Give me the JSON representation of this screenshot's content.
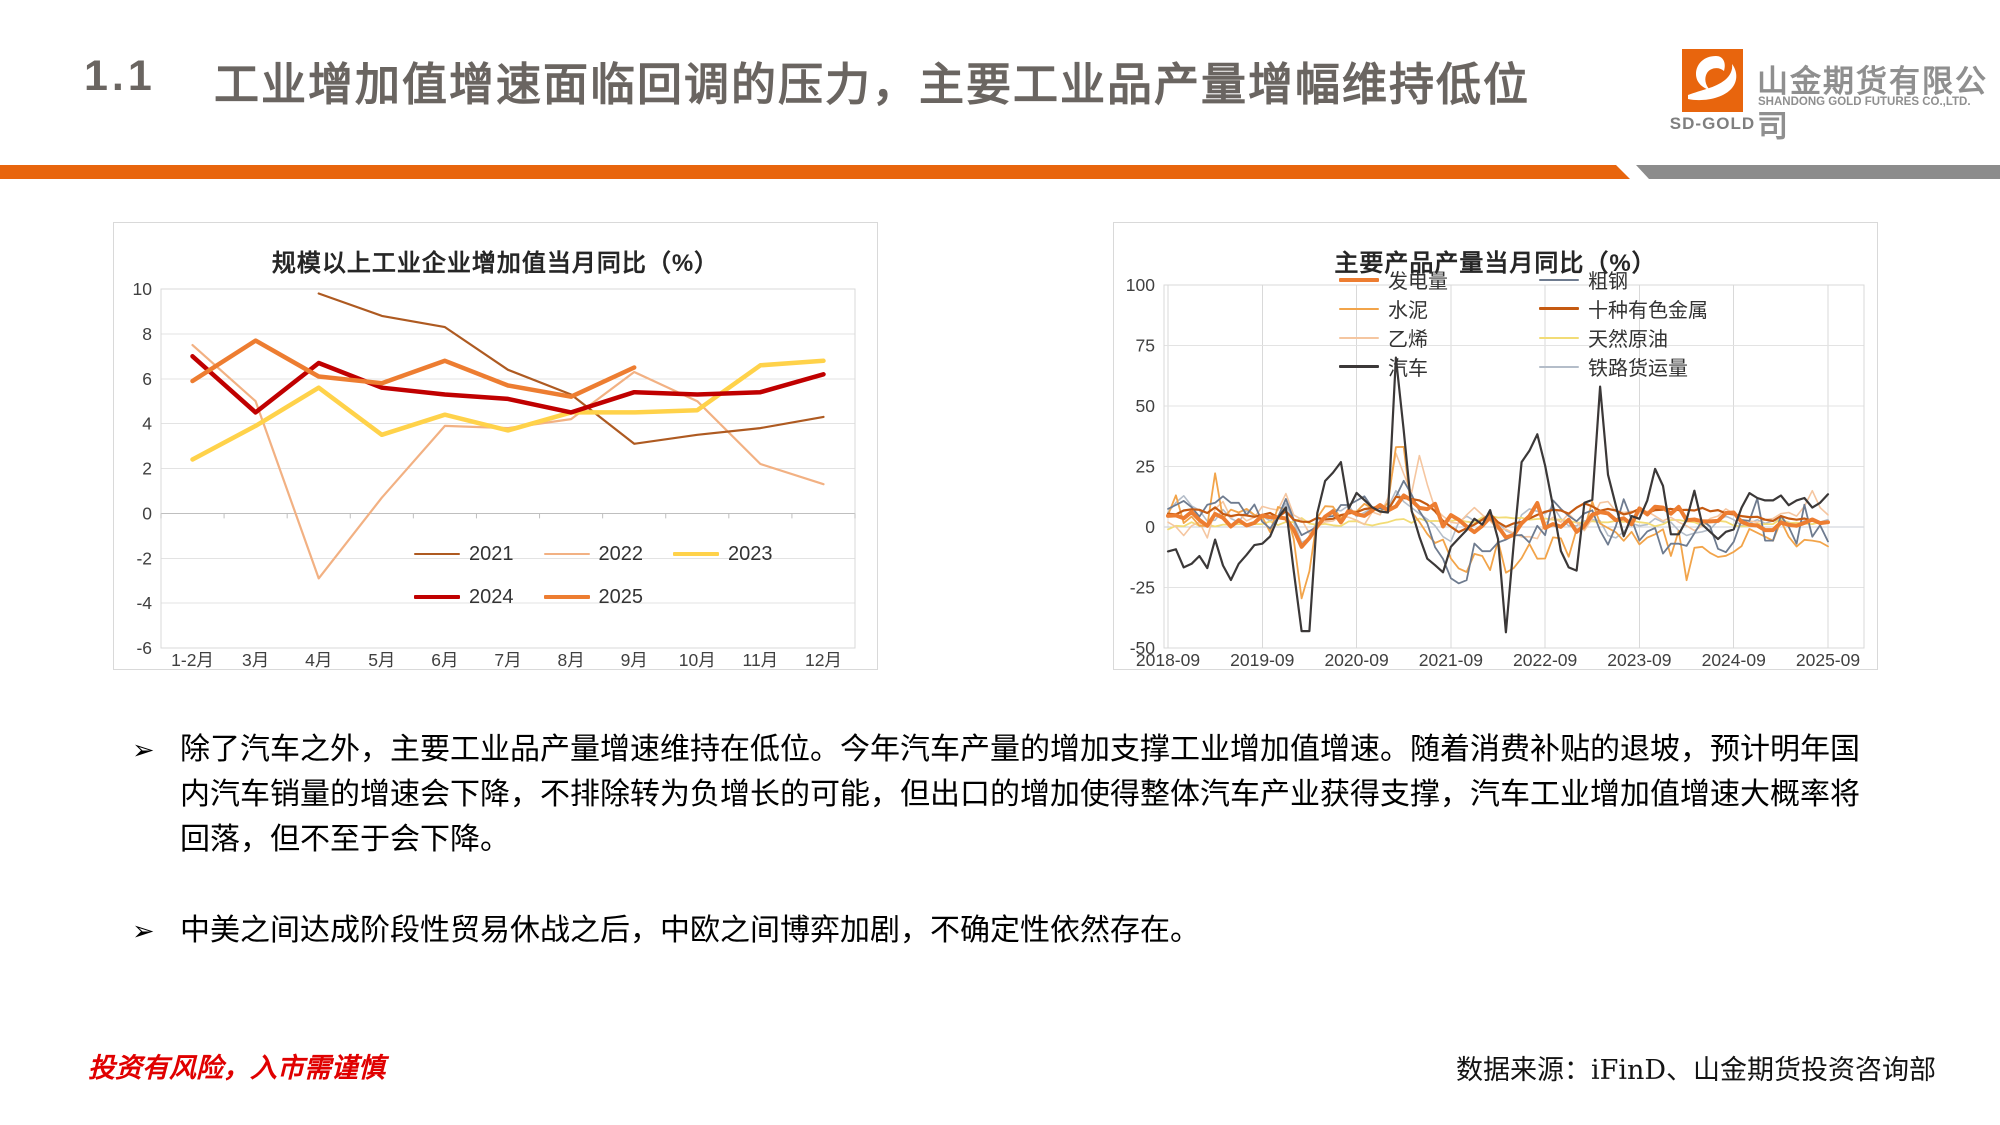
{
  "header": {
    "section_number": "1.1",
    "title": "工业增加值增速面临回调的压力，主要工业品产量增幅维持低位",
    "accent_color": "#E8650D",
    "secondary_color": "#8C8C8C",
    "logo": {
      "icon": "sd-gold-wave-logo",
      "logo_text": "SD-GOLD",
      "company_cn": "山金期货有限公司",
      "company_en": "SHANDONG GOLD FUTURES CO.,LTD."
    }
  },
  "bullets": {
    "marker": "➢",
    "items": [
      "除了汽车之外，主要工业品产量增速维持在低位。今年汽车产量的增加支撑工业增加值增速。随着消费补贴的退坡，预计明年国内汽车销量的增速会下降，不排除转为负增长的可能，但出口的增加使得整体汽车产业获得支撑，汽车工业增加值增速大概率将回落，但不至于会下降。",
      "中美之间达成阶段性贸易休战之后，中欧之间博弈加剧，不确定性依然存在。"
    ]
  },
  "footer": {
    "disclaimer": "投资有风险，入市需谨慎",
    "source": "数据来源：iFinD、山金期货投资咨询部"
  },
  "chart_data": [
    {
      "type": "line",
      "title": "规模以上工业企业增加值当月同比（%）",
      "ylim": [
        -6,
        10
      ],
      "ytick_step": 2,
      "grid": true,
      "legend_position": "inside-bottom",
      "categories": [
        "1-2月",
        "3月",
        "4月",
        "5月",
        "6月",
        "7月",
        "8月",
        "9月",
        "10月",
        "11月",
        "12月"
      ],
      "series": [
        {
          "name": "2022",
          "color": "#F2B183",
          "width": 2.2,
          "values": [
            7.5,
            5.0,
            -2.9,
            0.7,
            3.9,
            3.8,
            4.2,
            6.3,
            5.0,
            2.2,
            1.3
          ]
        },
        {
          "name": "2021",
          "color": "#AE5A21",
          "width": 2.2,
          "values": [
            null,
            null,
            9.8,
            8.8,
            8.3,
            6.4,
            5.3,
            3.1,
            3.5,
            3.8,
            4.3
          ]
        },
        {
          "name": "2023",
          "color": "#FFD24A",
          "width": 4.5,
          "values": [
            2.4,
            3.9,
            5.6,
            3.5,
            4.4,
            3.7,
            4.5,
            4.5,
            4.6,
            6.6,
            6.8
          ]
        },
        {
          "name": "2024",
          "color": "#C00000",
          "width": 4.5,
          "values": [
            7.0,
            4.5,
            6.7,
            5.6,
            5.3,
            5.1,
            4.5,
            5.4,
            5.3,
            5.4,
            6.2
          ]
        },
        {
          "name": "2025",
          "color": "#ED7D31",
          "width": 4.5,
          "values": [
            5.9,
            7.7,
            6.1,
            5.8,
            6.8,
            5.7,
            5.2,
            6.5,
            null,
            null,
            null
          ]
        }
      ],
      "legend_rows": [
        [
          "2021",
          "2022",
          "2023"
        ],
        [
          "2024",
          "2025"
        ]
      ]
    },
    {
      "type": "line",
      "title": "主要产品产量当月同比（%）",
      "ylim": [
        -50,
        100
      ],
      "ytick_step": 25,
      "grid": true,
      "legend_position": "inside-top",
      "x_start": "2018-09",
      "x_end": "2025-09",
      "x_ticks": [
        "2018-09",
        "2019-09",
        "2020-09",
        "2021-09",
        "2022-09",
        "2023-09",
        "2024-09",
        "2025-09"
      ],
      "x_tick_indices": [
        0,
        12,
        24,
        36,
        48,
        60,
        72,
        84
      ],
      "series": [
        {
          "name": "铁路货运量",
          "color": "#B4BDC9",
          "width": 1.6,
          "values": [
            6.0,
            10.1,
            12.9,
            8.7,
            6.9,
            2.4,
            2.8,
            7.2,
            3.5,
            2.0,
            6.9,
            4.7,
            4.5,
            2.5,
            4.5,
            9.7,
            2.0,
            -6.5,
            -4.5,
            2.9,
            3.9,
            7.3,
            6.7,
            8.9,
            4.3,
            6.0,
            7.8,
            8.9,
            8.0,
            15.0,
            10.5,
            8.0,
            5.5,
            3.2,
            0.5,
            -4.0,
            -6.0,
            2.0,
            4.5,
            2.5,
            3.5,
            5.0,
            2.0,
            -1.5,
            -3.0,
            5.0,
            7.5,
            6.5,
            5.5,
            8.5,
            3.5,
            0.5,
            0.5,
            2.5,
            3.0,
            2.5,
            -3.5,
            -4.5,
            -2.0,
            1.5,
            0.5,
            1.0,
            3.5,
            2.0,
            2.0,
            -1.5,
            -3.5,
            -2.5,
            -2.0,
            -1.0,
            2.5,
            4.5,
            3.0,
            0.5,
            1.5,
            3.0,
            1.5,
            2.5,
            3.0,
            2.0,
            1.0,
            2.5,
            3.5,
            2.0,
            3.0
          ]
        },
        {
          "name": "天然原油",
          "color": "#F2DC76",
          "width": 1.8,
          "values": [
            -1.0,
            0.5,
            0.3,
            2.0,
            0.5,
            1.0,
            0.2,
            1.0,
            1.0,
            1.2,
            1.2,
            1.2,
            1.2,
            2.3,
            0.8,
            2.1,
            2.0,
            3.7,
            1.4,
            0.9,
            1.3,
            0.7,
            0.4,
            2.3,
            2.4,
            1.2,
            0.6,
            1.4,
            2.0,
            3.0,
            3.3,
            1.7,
            3.5,
            2.4,
            2.5,
            2.3,
            2.5,
            3.0,
            2.2,
            1.8,
            4.0,
            4.6,
            3.9,
            4.0,
            3.6,
            3.8,
            3.0,
            3.3,
            3.5,
            3.0,
            3.1,
            2.5,
            1.8,
            1.8,
            2.4,
            2.0,
            1.9,
            2.5,
            2.1,
            2.7,
            2.0,
            1.6,
            0.3,
            1.1,
            2.9,
            2.9,
            2.3,
            2.0,
            0.6,
            2.4,
            2.5,
            2.2,
            0.6,
            0.2,
            0.5,
            1.3,
            1.2,
            1.2,
            3.5,
            1.6,
            1.8,
            1.4,
            1.2,
            2.0,
            1.8
          ]
        },
        {
          "name": "乙烯",
          "color": "#F5C6A0",
          "width": 1.6,
          "values": [
            2.0,
            0.1,
            -3.5,
            0.5,
            2.0,
            -4.5,
            7.5,
            10.5,
            3.8,
            5.5,
            2.5,
            4.0,
            8.5,
            7.6,
            7.0,
            13.8,
            5.0,
            3.1,
            -2.6,
            0.7,
            2.1,
            2.5,
            4.7,
            4.0,
            2.8,
            1.0,
            6.2,
            5.0,
            12.0,
            30.5,
            22.0,
            14.0,
            29.5,
            17.5,
            7.5,
            4.5,
            2.0,
            1.5,
            5.0,
            8.0,
            5.0,
            2.5,
            -1.0,
            -0.9,
            -2.5,
            -4.1,
            -4.0,
            -4.8,
            1.5,
            4.0,
            2.0,
            5.5,
            2.0,
            -1.5,
            3.5,
            10.0,
            10.5,
            6.5,
            6.0,
            6.5,
            6.0,
            6.5,
            4.5,
            2.5,
            4.0,
            2.0,
            0.5,
            -1.5,
            0.5,
            3.5,
            4.5,
            7.5,
            5.5,
            3.0,
            2.5,
            2.0,
            3.0,
            3.5,
            5.5,
            6.0,
            4.5,
            8.5,
            15.0,
            8.0,
            5.0
          ]
        },
        {
          "name": "水泥",
          "color": "#F2A44A",
          "width": 1.8,
          "values": [
            5.0,
            13.1,
            1.6,
            4.3,
            0.5,
            0.5,
            22.2,
            3.4,
            7.2,
            6.0,
            7.5,
            5.0,
            4.1,
            -2.1,
            8.3,
            6.9,
            -5.0,
            -29.5,
            -18.3,
            3.8,
            8.6,
            8.4,
            3.6,
            6.6,
            6.4,
            9.6,
            7.7,
            6.3,
            10.0,
            33.0,
            33.1,
            6.3,
            2.1,
            -2.9,
            -6.6,
            -5.2,
            -13.0,
            -17.1,
            -18.6,
            -11.1,
            -12.0,
            -17.8,
            -5.6,
            -18.9,
            -17.0,
            -12.9,
            -7.0,
            -13.1,
            -13.0,
            -4.3,
            -4.7,
            -12.3,
            -1.0,
            -0.6,
            10.4,
            1.4,
            -0.4,
            -2.2,
            -5.7,
            -2.0,
            -7.2,
            -4.4,
            -3.0,
            -0.9,
            -12.0,
            -1.6,
            -22.0,
            -8.6,
            -8.2,
            -10.7,
            -12.4,
            -11.9,
            -10.3,
            -7.9,
            -0.8,
            -2.4,
            -4.0,
            -5.7,
            2.5,
            -4.0,
            -8.1,
            -5.3,
            -5.6,
            -6.2,
            -8.0
          ]
        },
        {
          "name": "粗钢",
          "color": "#6E7B8F",
          "width": 1.8,
          "values": [
            7.5,
            9.1,
            10.8,
            8.2,
            4.3,
            9.2,
            10.0,
            12.7,
            10.0,
            10.0,
            5.0,
            9.3,
            2.2,
            -0.6,
            4.1,
            11.6,
            3.1,
            -3.4,
            -1.7,
            0.2,
            4.2,
            4.5,
            9.1,
            9.1,
            10.9,
            12.7,
            8.0,
            7.7,
            6.8,
            12.5,
            19.1,
            13.4,
            6.6,
            1.5,
            -8.4,
            -13.2,
            -21.2,
            -23.3,
            -22.0,
            -6.8,
            -10.0,
            -10.0,
            -6.4,
            -5.2,
            -3.5,
            -3.3,
            -6.4,
            0.5,
            -3.4,
            11.0,
            7.5,
            4.6,
            2.4,
            5.6,
            6.9,
            -1.5,
            -7.3,
            0.4,
            11.5,
            3.2,
            -5.6,
            -1.8,
            -0.4,
            -11.0,
            -6.9,
            -6.9,
            -7.8,
            -2.6,
            2.7,
            0.2,
            -9.0,
            -10.4,
            -6.1,
            2.9,
            2.5,
            11.8,
            -5.6,
            -5.6,
            4.6,
            0.1,
            -6.9,
            9.2,
            -4.0,
            0.7,
            -6.0
          ]
        },
        {
          "name": "十种有色金属",
          "color": "#C55A11",
          "width": 2.2,
          "values": [
            5.5,
            5.2,
            6.8,
            7.3,
            7.1,
            5.8,
            8.1,
            5.4,
            4.5,
            5.1,
            4.8,
            4.2,
            5.0,
            5.8,
            4.0,
            6.5,
            3.0,
            2.2,
            2.1,
            3.8,
            3.1,
            3.4,
            4.9,
            5.6,
            6.1,
            7.4,
            7.9,
            8.6,
            7.0,
            12.5,
            12.0,
            11.6,
            11.0,
            9.3,
            6.5,
            2.5,
            0.1,
            -2.1,
            -0.5,
            1.0,
            3.0,
            5.5,
            2.0,
            0.1,
            1.5,
            2.1,
            3.5,
            5.0,
            6.3,
            7.1,
            6.8,
            5.5,
            8.0,
            9.8,
            8.5,
            6.7,
            7.5,
            6.8,
            5.2,
            6.0,
            7.5,
            5.8,
            7.0,
            7.2,
            7.5,
            7.0,
            7.1,
            6.8,
            7.9,
            6.5,
            7.0,
            5.6,
            5.2,
            4.5,
            4.1,
            4.2,
            3.0,
            2.5,
            4.5,
            3.5,
            3.0,
            3.5,
            2.5,
            2.0,
            2.2
          ]
        },
        {
          "name": "发电量",
          "color": "#ED7D31",
          "width": 4.0,
          "values": [
            4.6,
            4.8,
            3.6,
            6.2,
            2.9,
            0.5,
            5.4,
            3.8,
            0.2,
            2.8,
            0.6,
            1.7,
            4.7,
            4.0,
            4.0,
            3.5,
            -1.0,
            -8.2,
            -4.6,
            0.3,
            4.3,
            6.5,
            1.9,
            6.8,
            5.3,
            4.6,
            6.8,
            9.1,
            6.8,
            8.5,
            13.0,
            11.0,
            7.9,
            7.4,
            9.6,
            0.2,
            4.9,
            3.0,
            0.2,
            -2.1,
            0.5,
            4.0,
            0.2,
            -4.3,
            -3.3,
            1.5,
            4.5,
            9.9,
            -0.4,
            1.2,
            0.1,
            3.0,
            -2.0,
            0.5,
            5.1,
            6.1,
            5.6,
            2.8,
            3.6,
            1.1,
            7.7,
            5.2,
            8.4,
            8.0,
            5.5,
            8.3,
            2.8,
            3.1,
            2.3,
            2.3,
            2.5,
            5.8,
            6.0,
            2.1,
            0.9,
            0.6,
            -1.3,
            -1.3,
            1.8,
            0.9,
            0.5,
            1.7,
            3.1,
            1.6,
            2.0
          ]
        },
        {
          "name": "汽车",
          "color": "#3B3838",
          "width": 2.2,
          "values": [
            -10.1,
            -9.2,
            -16.7,
            -15.2,
            -12.0,
            -17.0,
            -5.2,
            -15.9,
            -21.9,
            -15.2,
            -11.5,
            -7.5,
            -6.9,
            -3.9,
            3.8,
            8.1,
            -18.0,
            -43.0,
            -43.0,
            5.8,
            19.0,
            22.5,
            26.8,
            7.6,
            14.1,
            11.1,
            8.1,
            6.4,
            6.0,
            70.0,
            40.0,
            6.8,
            -4.0,
            -13.1,
            -15.8,
            -18.7,
            -8.2,
            -4.7,
            -1.3,
            3.4,
            1.0,
            7.0,
            -4.9,
            -43.5,
            -7.0,
            26.8,
            31.5,
            38.3,
            25.4,
            8.6,
            -9.9,
            -16.7,
            -18.0,
            10.0,
            11.2,
            58.0,
            21.6,
            8.8,
            -3.8,
            4.5,
            3.4,
            11.0,
            24.0,
            17.0,
            -3.0,
            -3.0,
            3.0,
            15.0,
            1.0,
            -2.0,
            -5.0,
            -2.0,
            -1.0,
            8.0,
            14.0,
            12.0,
            11.0,
            11.0,
            13.0,
            9.0,
            11.0,
            12.0,
            8.0,
            10.0,
            13.5
          ]
        }
      ],
      "legend_columns": [
        [
          "发电量",
          "水泥",
          "乙烯",
          "汽车"
        ],
        [
          "粗钢",
          "十种有色金属",
          "天然原油",
          "铁路货运量"
        ]
      ]
    }
  ]
}
